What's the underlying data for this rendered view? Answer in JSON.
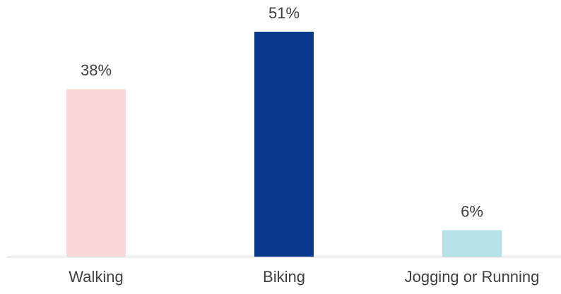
{
  "chart_data": {
    "type": "bar",
    "categories": [
      "Walking",
      "Biking",
      "Jogging or Running"
    ],
    "values": [
      38,
      51,
      6
    ],
    "value_labels": [
      "38%",
      "51%",
      "6%"
    ],
    "colors": [
      "#f9d9d8",
      "#0a3a8f",
      "#b5e3e8"
    ]
  }
}
